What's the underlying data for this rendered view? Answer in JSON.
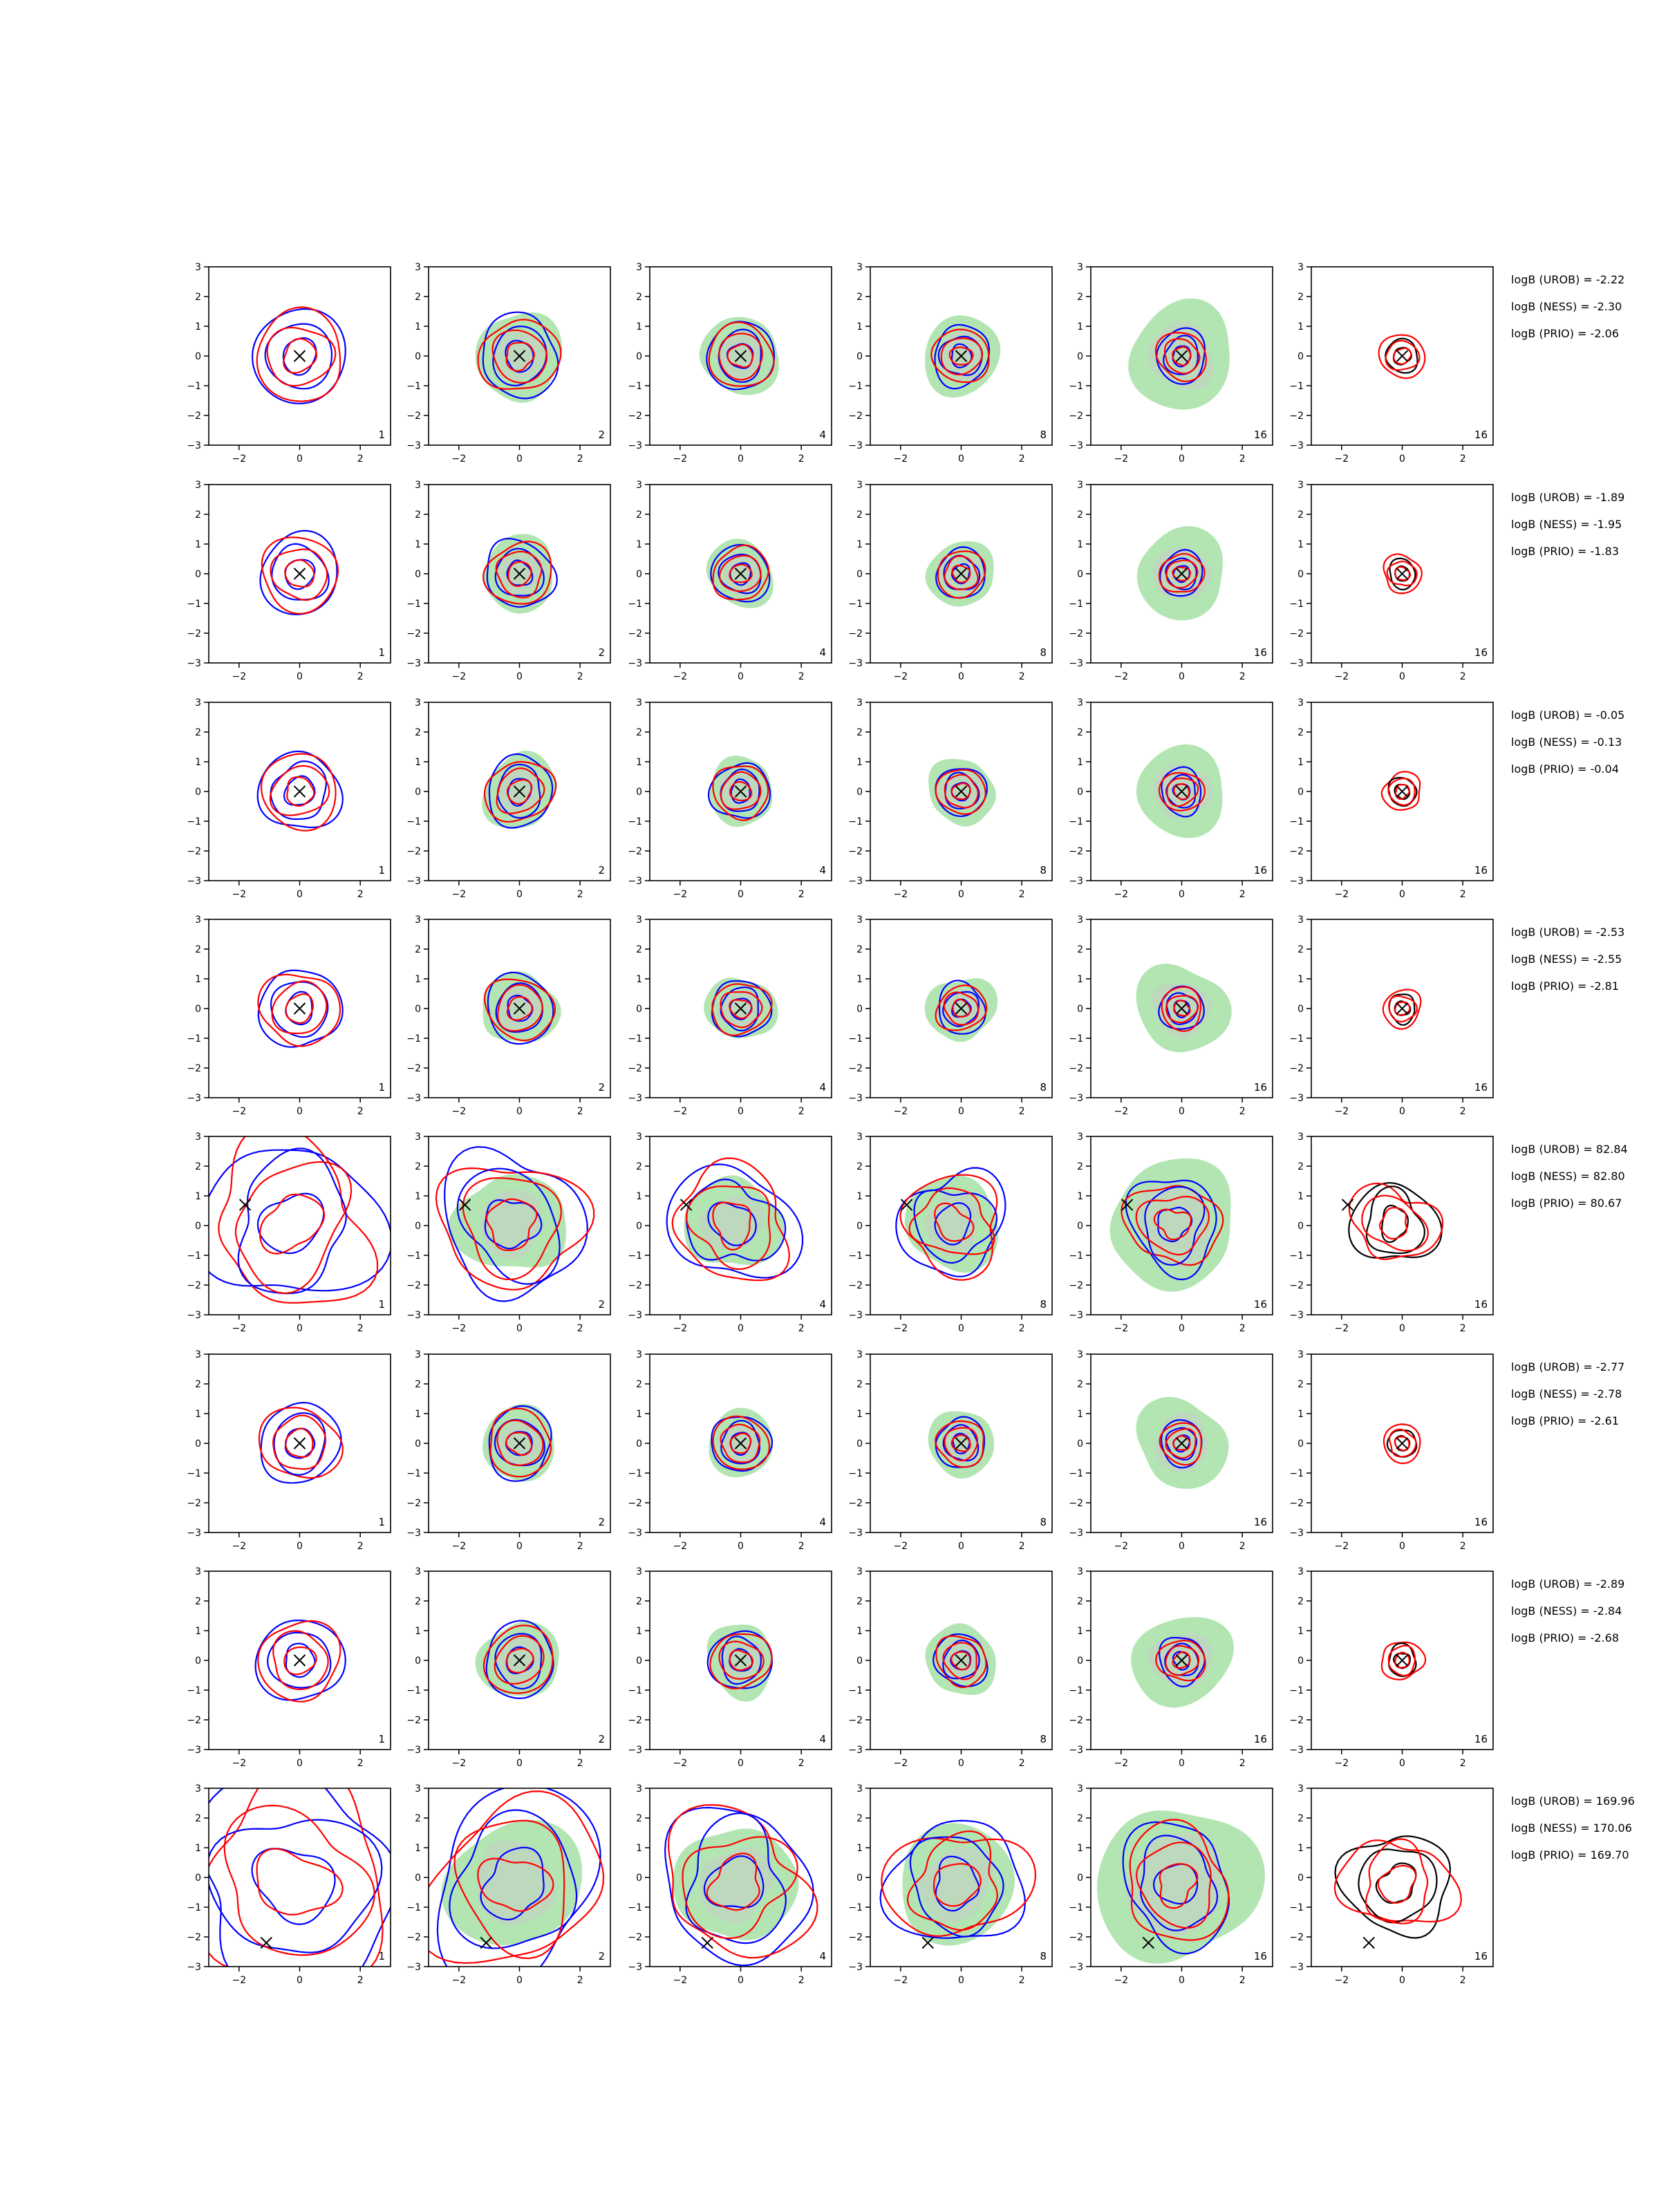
{
  "figure": {
    "rows": 8,
    "columns": 6,
    "axis_limits": {
      "x": [
        -3,
        3
      ],
      "y": [
        -3,
        3
      ]
    },
    "x_ticks": [
      "−2",
      "0",
      "2"
    ],
    "y_ticks": [
      "3",
      "2",
      "1",
      "0",
      "−1",
      "−2",
      "−3"
    ],
    "column_panel_labels": [
      "1",
      "2",
      "4",
      "8",
      "16",
      "16"
    ],
    "colors": {
      "blue_contour": "#0000ff",
      "red_contour": "#ff0000",
      "black_contour": "#000000",
      "green_fill": "#b2e5b2",
      "grey_fill": "#c9cdc9"
    }
  },
  "chart_data": {
    "type": "contour-grid",
    "xlim": [
      -3,
      3
    ],
    "ylim": [
      -3,
      3
    ],
    "rows": [
      {
        "marker": [
          0,
          0
        ],
        "scale": 1.0,
        "stats": [
          "logB (UROB) = -2.22",
          "logB (NESS) = -2.30",
          "logB (PRIO) = -2.06"
        ]
      },
      {
        "marker": [
          0,
          0
        ],
        "scale": 0.85,
        "stats": [
          "logB (UROB) = -1.89",
          "logB (NESS) = -1.95",
          "logB (PRIO) = -1.83"
        ]
      },
      {
        "marker": [
          0,
          0
        ],
        "scale": 0.85,
        "stats": [
          "logB (UROB) = -0.05",
          "logB (NESS) = -0.13",
          "logB (PRIO) = -0.04"
        ]
      },
      {
        "marker": [
          0,
          0
        ],
        "scale": 0.85,
        "stats": [
          "logB (UROB) = -2.53",
          "logB (NESS) = -2.55",
          "logB (PRIO) = -2.81"
        ]
      },
      {
        "marker": [
          -1.8,
          0.7
        ],
        "scale": 1.2,
        "stats": [
          "logB (UROB) = 82.84",
          "logB (NESS) = 82.80",
          "logB (PRIO) = 80.67"
        ]
      },
      {
        "marker": [
          0,
          0
        ],
        "scale": 0.85,
        "stats": [
          "logB (UROB) = -2.77",
          "logB (NESS) = -2.78",
          "logB (PRIO) = -2.61"
        ]
      },
      {
        "marker": [
          0,
          0
        ],
        "scale": 0.9,
        "stats": [
          "logB (UROB) = -2.89",
          "logB (NESS) = -2.84",
          "logB (PRIO) = -2.68"
        ]
      },
      {
        "marker": [
          -1.1,
          -2.2
        ],
        "scale": 1.5,
        "stats": [
          "logB (UROB) = 169.96",
          "logB (NESS) = 170.06",
          "logB (PRIO) = 169.70"
        ]
      }
    ]
  }
}
